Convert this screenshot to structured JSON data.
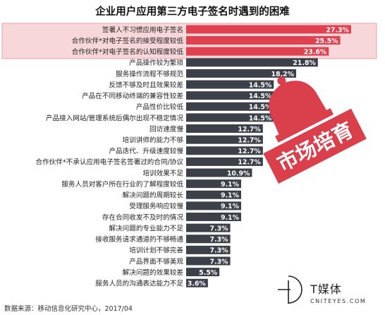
{
  "chart_data": {
    "type": "bar",
    "orientation": "horizontal",
    "title": "企业用户应用第三方电子签名时遇到的困难",
    "categories": [
      "签署人不习惯应用电子签名",
      "合作伙伴*对电子签名的接受程度较低",
      "合作伙伴*对电子签名的认知程度较低",
      "产品操作较为繁琐",
      "服务操作流程不够规范",
      "反馈不够及时且效果较差",
      "产品在不同移动终端的兼容性较差",
      "产品性价比较低",
      "产品接入网站/管理系统后偶尔出现不稳定情况",
      "回访速度慢",
      "培训讲师的能力不够",
      "产品迭代、升级速度较慢",
      "合作伙伴*不承认应用电子签名签署过的合同/协议",
      "培训效果不足",
      "服务人员对客户所在行业的了解程度较低",
      "解决问题的周期较长",
      "受理服务响应较慢",
      "存在合同收发不及时的情况",
      "解决问题的专业能力不足",
      "接收服务请求通道的不够畅通",
      "培训计划不够完善",
      "产品界面不够美观",
      "解决问题的效果较差",
      "服务人员的沟通表达能力不足"
    ],
    "values": [
      27.3,
      25.5,
      23.6,
      21.8,
      18.2,
      14.5,
      14.5,
      14.5,
      14.5,
      12.7,
      12.7,
      12.7,
      12.7,
      10.9,
      9.1,
      9.1,
      9.1,
      9.1,
      7.3,
      7.3,
      7.3,
      7.3,
      5.5,
      3.6
    ],
    "value_labels": [
      "27.3%",
      "25.5%",
      "23.6%",
      "21.8%",
      "18.2%",
      "14.5%",
      "14.5%",
      "14.5%",
      "14.5%",
      "12.7%",
      "12.7%",
      "12.7%",
      "12.7%",
      "10.9%",
      "9.1%",
      "9.1%",
      "9.1%",
      "9.1%",
      "7.3%",
      "7.3%",
      "7.3%",
      "7.3%",
      "5.5%",
      "3.6%"
    ],
    "highlight_count": 3,
    "xlim": [
      0,
      30
    ],
    "grid": false,
    "legend": "none",
    "colors": {
      "highlight_bar": "#e0414f",
      "normal_bar": "#3c4049",
      "highlight_band": "#f7d7d9",
      "highlight_border": "#e9a4aa",
      "value_text": "#ffffff",
      "label_text": "#222222"
    }
  },
  "stamp": {
    "text": "市场培育",
    "color": "#d9404c"
  },
  "source": "数据来源：移动信息化研究中心，2017/04",
  "logo": {
    "name": "T媒体",
    "domain": "CNITEYES.COM"
  }
}
